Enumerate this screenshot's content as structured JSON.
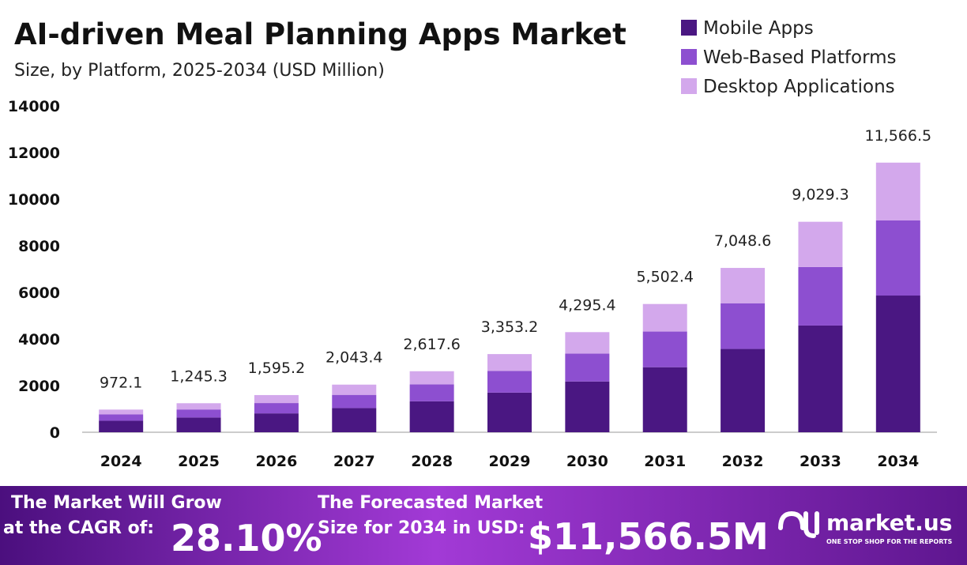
{
  "chart_data": {
    "type": "stacked_bar",
    "title": "AI-driven Meal Planning Apps Market",
    "subtitle": "Size, by Platform, 2025-2034 (USD Million)",
    "categories": [
      "2024",
      "2025",
      "2026",
      "2027",
      "2028",
      "2029",
      "2030",
      "2031",
      "2032",
      "2033",
      "2034"
    ],
    "series": [
      {
        "name": "Mobile Apps",
        "color": "#4a1782",
        "values": [
          493,
          631,
          809,
          1036,
          1327,
          1700,
          2178,
          2790,
          3574,
          4578,
          5864
        ]
      },
      {
        "name": "Web-Based Platforms",
        "color": "#8d4fd0",
        "values": [
          270,
          346,
          443,
          568,
          728,
          932,
          1194,
          1530,
          1960,
          2510,
          3221
        ]
      },
      {
        "name": "Desktop Applications",
        "color": "#d3a8ec",
        "values": [
          209,
          268,
          343,
          439,
          563,
          721,
          923,
          1182,
          1515,
          1941,
          2481
        ]
      }
    ],
    "totals": [
      972.1,
      1245.3,
      1595.2,
      2043.4,
      2617.6,
      3353.2,
      4295.4,
      5502.4,
      7048.6,
      9029.3,
      11566.5
    ],
    "total_labels": [
      "972.1",
      "1,245.3",
      "1,595.2",
      "2,043.4",
      "2,617.6",
      "3,353.2",
      "4,295.4",
      "5,502.4",
      "7,048.6",
      "9,029.3",
      "11,566.5"
    ],
    "ylim": [
      0,
      14000
    ],
    "yticks": [
      0,
      2000,
      4000,
      6000,
      8000,
      10000,
      12000,
      14000
    ],
    "grid": false,
    "legend": "top-right"
  },
  "footer": {
    "cagr_line1": "The Market Will Grow",
    "cagr_line2": "at the CAGR of:",
    "cagr_value": "28.10%",
    "forecast_line1": "The Forecasted Market",
    "forecast_line2": "Size for 2034 in USD:",
    "forecast_value": "$11,566.5M",
    "brand": "market.us",
    "tagline": "ONE STOP SHOP FOR THE REPORTS"
  }
}
